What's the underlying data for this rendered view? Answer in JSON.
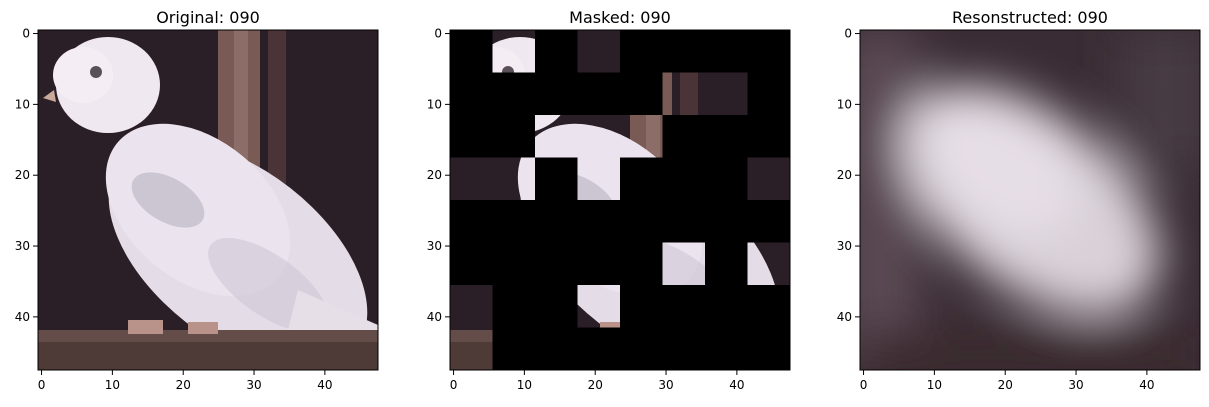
{
  "chart_data": [
    {
      "type": "image",
      "title": "Original: 090",
      "x_ticks": [
        0,
        10,
        20,
        30,
        40
      ],
      "y_ticks": [
        0,
        10,
        20,
        30,
        40
      ],
      "xlim": [
        -0.5,
        47.5
      ],
      "ylim": [
        47.5,
        -0.5
      ],
      "image_size": [
        48,
        48
      ],
      "content": "full image"
    },
    {
      "type": "image",
      "title": "Masked: 090",
      "x_ticks": [
        0,
        10,
        20,
        30,
        40
      ],
      "y_ticks": [
        0,
        10,
        20,
        30,
        40
      ],
      "xlim": [
        -0.5,
        47.5
      ],
      "ylim": [
        47.5,
        -0.5
      ],
      "image_size": [
        48,
        48
      ],
      "patch_size": 6,
      "visible_patches": [
        {
          "row": 0,
          "col": 1
        },
        {
          "row": 0,
          "col": 3
        },
        {
          "row": 1,
          "col": 5
        },
        {
          "row": 1,
          "col": 6
        },
        {
          "row": 2,
          "col": 2
        },
        {
          "row": 2,
          "col": 3
        },
        {
          "row": 2,
          "col": 4
        },
        {
          "row": 3,
          "col": 0
        },
        {
          "row": 3,
          "col": 1
        },
        {
          "row": 3,
          "col": 3
        },
        {
          "row": 3,
          "col": 7
        },
        {
          "row": 5,
          "col": 5
        },
        {
          "row": 5,
          "col": 7
        },
        {
          "row": 6,
          "col": 0
        },
        {
          "row": 6,
          "col": 3
        },
        {
          "row": 7,
          "col": 0
        }
      ]
    },
    {
      "type": "image",
      "title": "Resonstructed: 090",
      "x_ticks": [
        0,
        10,
        20,
        30,
        40
      ],
      "y_ticks": [
        0,
        10,
        20,
        30,
        40
      ],
      "xlim": [
        -0.5,
        47.5
      ],
      "ylim": [
        47.5,
        -0.5
      ],
      "image_size": [
        48,
        48
      ],
      "content": "blurred reconstruction"
    }
  ],
  "colors": {
    "mask": "#000000",
    "bird_white": "#e6e0e6",
    "background_dark": "#2a1e24",
    "branch_brown": "#6a4a44"
  }
}
